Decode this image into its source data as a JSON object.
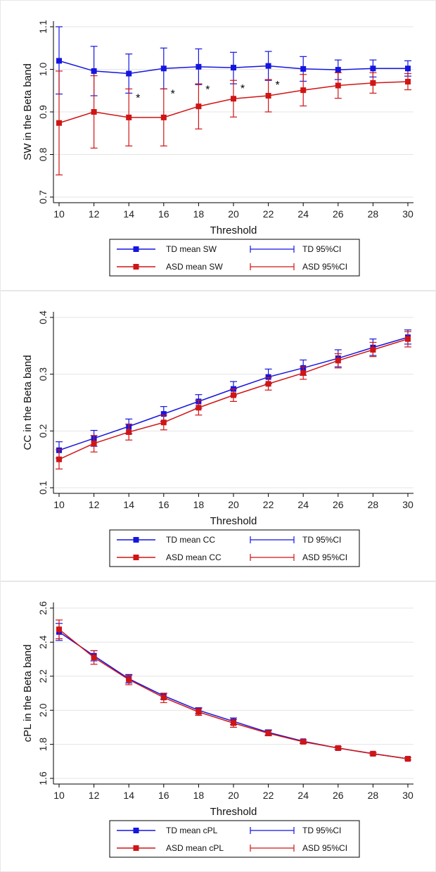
{
  "colors": {
    "td": "#1515e0",
    "asd": "#d01515",
    "grid": "#e4e4e4",
    "axis": "#000000"
  },
  "chart_data": [
    {
      "type": "line",
      "xlabel": "Threshold",
      "ylabel": "SW in the Beta band",
      "x": [
        10,
        12,
        14,
        16,
        18,
        20,
        22,
        24,
        26,
        28,
        30
      ],
      "xlim": [
        10,
        30
      ],
      "ylim": [
        0.7,
        1.1
      ],
      "yticks": [
        0.7,
        0.8,
        0.9,
        1.0,
        1.1
      ],
      "ytick_labels": [
        "0.7",
        "0.8",
        "0.9",
        "1.0",
        "1.1"
      ],
      "grid": true,
      "series": [
        {
          "name": "TD mean SW",
          "ci_name": "TD 95%CI",
          "color": "td",
          "values": [
            1.02,
            0.996,
            0.99,
            1.002,
            1.006,
            1.004,
            1.008,
            1.001,
            0.999,
            1.002,
            1.002
          ],
          "lower": [
            0.942,
            0.938,
            0.944,
            0.954,
            0.964,
            0.966,
            0.974,
            0.972,
            0.976,
            0.982,
            0.984
          ],
          "upper": [
            1.1,
            1.054,
            1.036,
            1.05,
            1.048,
            1.04,
            1.042,
            1.03,
            1.022,
            1.022,
            1.02
          ]
        },
        {
          "name": "ASD mean SW",
          "ci_name": "ASD 95%CI",
          "color": "asd",
          "values": [
            0.874,
            0.9,
            0.887,
            0.887,
            0.913,
            0.931,
            0.938,
            0.951,
            0.962,
            0.968,
            0.971
          ],
          "lower": [
            0.752,
            0.815,
            0.82,
            0.82,
            0.86,
            0.888,
            0.9,
            0.914,
            0.932,
            0.944,
            0.952
          ],
          "upper": [
            0.996,
            0.985,
            0.954,
            0.954,
            0.966,
            0.974,
            0.976,
            0.988,
            0.992,
            0.992,
            0.99
          ]
        }
      ],
      "annotations": [
        {
          "x": 14,
          "text": "*"
        },
        {
          "x": 16,
          "text": "*"
        },
        {
          "x": 18,
          "text": "*"
        },
        {
          "x": 20,
          "text": "*"
        },
        {
          "x": 22,
          "text": "*"
        }
      ]
    },
    {
      "type": "line",
      "xlabel": "Threshold",
      "ylabel": "CC in the Beta band",
      "x": [
        10,
        12,
        14,
        16,
        18,
        20,
        22,
        24,
        26,
        28,
        30
      ],
      "xlim": [
        10,
        30
      ],
      "ylim": [
        0.1,
        0.4
      ],
      "yticks": [
        0.1,
        0.2,
        0.3,
        0.4
      ],
      "ytick_labels": [
        "0.1",
        "0.2",
        "0.3",
        "0.4"
      ],
      "grid": true,
      "series": [
        {
          "name": "TD mean CC",
          "ci_name": "TD 95%CI",
          "color": "td",
          "values": [
            0.166,
            0.187,
            0.208,
            0.23,
            0.252,
            0.274,
            0.295,
            0.311,
            0.328,
            0.347,
            0.365
          ],
          "lower": [
            0.152,
            0.173,
            0.195,
            0.217,
            0.24,
            0.262,
            0.283,
            0.298,
            0.313,
            0.333,
            0.353
          ],
          "upper": [
            0.181,
            0.201,
            0.221,
            0.243,
            0.264,
            0.287,
            0.309,
            0.325,
            0.343,
            0.362,
            0.378
          ]
        },
        {
          "name": "ASD mean CC",
          "ci_name": "ASD 95%CI",
          "color": "asd",
          "values": [
            0.15,
            0.178,
            0.198,
            0.215,
            0.241,
            0.263,
            0.283,
            0.302,
            0.324,
            0.343,
            0.362
          ],
          "lower": [
            0.133,
            0.163,
            0.184,
            0.202,
            0.228,
            0.252,
            0.272,
            0.291,
            0.311,
            0.331,
            0.348
          ],
          "upper": [
            0.167,
            0.192,
            0.212,
            0.228,
            0.254,
            0.274,
            0.294,
            0.313,
            0.336,
            0.356,
            0.375
          ]
        }
      ]
    },
    {
      "type": "line",
      "xlabel": "Threshold",
      "ylabel": "cPL in the Beta band",
      "x": [
        10,
        12,
        14,
        16,
        18,
        20,
        22,
        24,
        26,
        28,
        30
      ],
      "xlim": [
        10,
        30
      ],
      "ylim": [
        1.6,
        2.6
      ],
      "yticks": [
        1.6,
        1.8,
        2.0,
        2.2,
        2.4,
        2.6
      ],
      "ytick_labels": [
        "1.6",
        "1.8",
        "2.0",
        "2.2",
        "2.4",
        "2.6"
      ],
      "grid": true,
      "series": [
        {
          "name": "TD mean cPL",
          "ci_name": "TD 95%CI",
          "color": "td",
          "values": [
            2.46,
            2.32,
            2.185,
            2.085,
            2.0,
            1.935,
            1.87,
            1.818,
            1.778,
            1.745,
            1.715
          ],
          "lower": [
            2.41,
            2.29,
            2.16,
            2.065,
            1.98,
            1.915,
            1.855,
            1.808,
            1.77,
            1.738,
            1.708
          ],
          "upper": [
            2.51,
            2.35,
            2.21,
            2.1,
            2.015,
            1.955,
            1.885,
            1.826,
            1.786,
            1.752,
            1.722
          ]
        },
        {
          "name": "ASD mean cPL",
          "ci_name": "ASD 95%CI",
          "color": "asd",
          "values": [
            2.475,
            2.31,
            2.18,
            2.075,
            1.99,
            1.925,
            1.865,
            1.815,
            1.778,
            1.745,
            1.715
          ],
          "lower": [
            2.42,
            2.27,
            2.15,
            2.045,
            1.97,
            1.9,
            1.85,
            1.805,
            1.77,
            1.738,
            1.708
          ],
          "upper": [
            2.53,
            2.35,
            2.205,
            2.1,
            2.01,
            1.945,
            1.88,
            1.825,
            1.786,
            1.752,
            1.722
          ]
        }
      ]
    }
  ]
}
